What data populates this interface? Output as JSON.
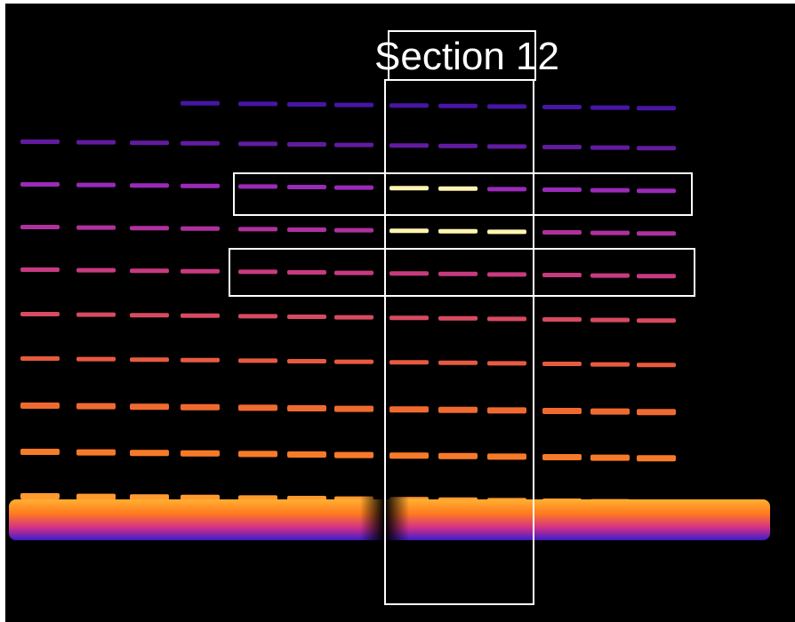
{
  "label": "Section 12"
}
